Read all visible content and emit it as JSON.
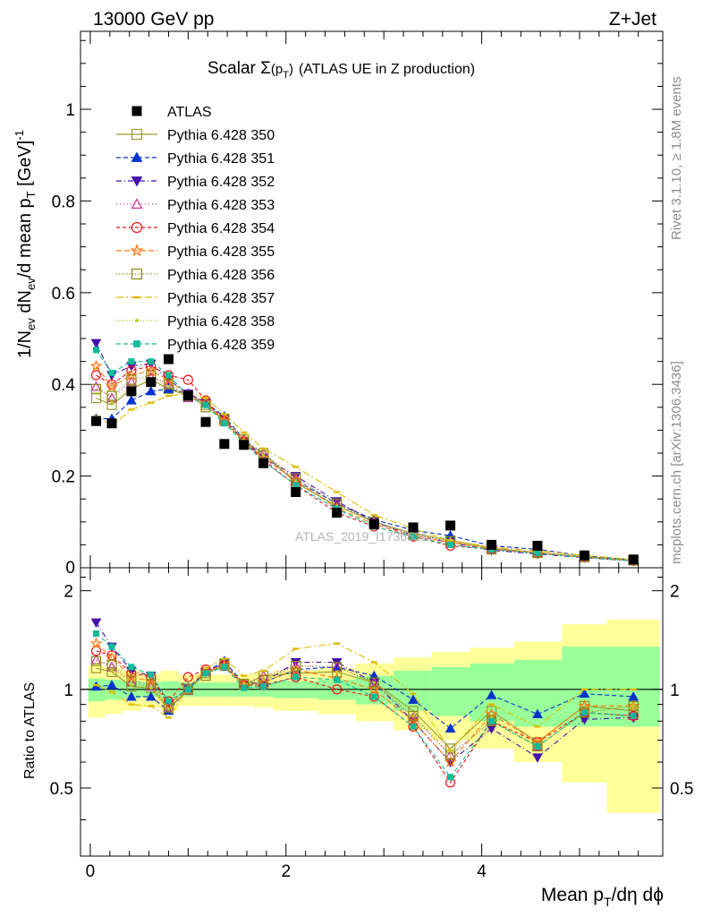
{
  "header": {
    "left": "13000 GeV pp",
    "right": "Z+Jet"
  },
  "plot_title": {
    "prefix": "Scalar ",
    "sigma": "Σ",
    "paren_open": "(",
    "p": "p",
    "sub": "T",
    "paren_close": ")",
    "suffix": "(ATLAS UE in Z production)"
  },
  "side_text": {
    "rivet": "Rivet 3.1.10, ≥ 1.8M events",
    "mcplots": "mcplots.cern.ch [arXiv:1306.3436]"
  },
  "watermark": "ATLAS_2019_I1736531",
  "ylabel_top": {
    "a": "1/N",
    "a_sub": "ev",
    "b": " dN",
    "b_sub": "ev",
    "c": "/d mean p",
    "c_sub": "T",
    "d": " [GeV]",
    "d_sup": "-1"
  },
  "ylabel_bottom": "Ratio to ATLAS",
  "xlabel": {
    "a": "Mean p",
    "a_sub": "T",
    "b": "/dη dϕ"
  },
  "colors": {
    "data": "#000000",
    "band_inner": "#99ff99",
    "band_outer": "#ffff99"
  },
  "chart_data": {
    "type": "scatter",
    "x": [
      0.06,
      0.22,
      0.42,
      0.62,
      0.8,
      1.0,
      1.18,
      1.37,
      1.57,
      1.77,
      2.1,
      2.52,
      2.9,
      3.3,
      3.68,
      4.1,
      4.57,
      5.05,
      5.55
    ],
    "xlim": [
      -0.1,
      5.85
    ],
    "xticks": [
      "0",
      "2",
      "4"
    ],
    "upper": {
      "ylim": [
        0,
        1.17
      ],
      "yticks": [
        "0.2",
        "0.4",
        "0.6",
        "0.8",
        "1"
      ],
      "ytick_bottom": "0",
      "data": {
        "name": "ATLAS",
        "y": [
          0.32,
          0.315,
          0.385,
          0.405,
          0.455,
          0.375,
          0.318,
          0.27,
          0.268,
          0.228,
          0.165,
          0.12,
          0.095,
          0.088,
          0.092,
          0.05,
          0.048,
          0.027,
          0.018
        ]
      },
      "series": [
        {
          "name": "Pythia 6.428 350",
          "color": "#999933",
          "marker": "square-open",
          "dash": "",
          "y": [
            0.37,
            0.355,
            0.39,
            0.41,
            0.39,
            0.375,
            0.355,
            0.32,
            0.275,
            0.25,
            0.185,
            0.135,
            0.1,
            0.075,
            0.06,
            0.043,
            0.033,
            0.024,
            0.016
          ]
        },
        {
          "name": "Pythia 6.428 351",
          "color": "#0033cc",
          "marker": "triangle-up",
          "dash": "5,3",
          "y": [
            0.325,
            0.325,
            0.365,
            0.385,
            0.39,
            0.38,
            0.36,
            0.33,
            0.28,
            0.24,
            0.19,
            0.14,
            0.105,
            0.082,
            0.07,
            0.048,
            0.04,
            0.026,
            0.017
          ]
        },
        {
          "name": "Pythia 6.428 352",
          "color": "#4411aa",
          "marker": "triangle-down",
          "dash": "6,3,1,3",
          "y": [
            0.49,
            0.42,
            0.44,
            0.445,
            0.41,
            0.38,
            0.36,
            0.325,
            0.275,
            0.24,
            0.2,
            0.145,
            0.1,
            0.07,
            0.055,
            0.038,
            0.03,
            0.022,
            0.015
          ]
        },
        {
          "name": "Pythia 6.428 353",
          "color": "#cc3399",
          "marker": "triangle-open",
          "dash": "1,3",
          "y": [
            0.395,
            0.37,
            0.405,
            0.415,
            0.4,
            0.37,
            0.36,
            0.325,
            0.28,
            0.25,
            0.195,
            0.14,
            0.1,
            0.072,
            0.058,
            0.04,
            0.032,
            0.023,
            0.015
          ]
        },
        {
          "name": "Pythia 6.428 354",
          "color": "#ee1111",
          "marker": "circle-open",
          "dash": "4,3",
          "y": [
            0.42,
            0.4,
            0.43,
            0.44,
            0.42,
            0.41,
            0.365,
            0.32,
            0.275,
            0.235,
            0.18,
            0.12,
            0.09,
            0.068,
            0.048,
            0.04,
            0.033,
            0.023,
            0.015
          ]
        },
        {
          "name": "Pythia 6.428 355",
          "color": "#ff7711",
          "marker": "star-open",
          "dash": "6,3",
          "y": [
            0.44,
            0.395,
            0.42,
            0.43,
            0.41,
            0.375,
            0.36,
            0.32,
            0.275,
            0.24,
            0.19,
            0.13,
            0.095,
            0.07,
            0.055,
            0.042,
            0.033,
            0.024,
            0.016
          ]
        },
        {
          "name": "Pythia 6.428 356",
          "color": "#888811",
          "marker": "square-open",
          "dash": "1,2",
          "y": [
            0.39,
            0.375,
            0.41,
            0.42,
            0.4,
            0.375,
            0.35,
            0.325,
            0.28,
            0.245,
            0.195,
            0.14,
            0.1,
            0.073,
            0.058,
            0.04,
            0.032,
            0.023,
            0.016
          ]
        },
        {
          "name": "Pythia 6.428 357",
          "color": "#ddbb00",
          "marker": "dash",
          "dash": "8,3,2,3",
          "y": [
            0.33,
            0.31,
            0.345,
            0.36,
            0.375,
            0.38,
            0.37,
            0.335,
            0.295,
            0.26,
            0.22,
            0.165,
            0.115,
            0.085,
            0.06,
            0.045,
            0.037,
            0.027,
            0.018
          ]
        },
        {
          "name": "Pythia 6.428 358",
          "color": "#bbcc22",
          "marker": "dot",
          "dash": "1,2",
          "y": [
            0.38,
            0.36,
            0.395,
            0.41,
            0.395,
            0.375,
            0.355,
            0.32,
            0.278,
            0.245,
            0.19,
            0.135,
            0.1,
            0.073,
            0.06,
            0.041,
            0.032,
            0.023,
            0.016
          ]
        },
        {
          "name": "Pythia 6.428 359",
          "color": "#11bb99",
          "marker": "square-filled",
          "dash": "5,3",
          "y": [
            0.475,
            0.425,
            0.45,
            0.45,
            0.42,
            0.375,
            0.355,
            0.315,
            0.272,
            0.232,
            0.18,
            0.128,
            0.09,
            0.068,
            0.05,
            0.04,
            0.032,
            0.023,
            0.015
          ]
        }
      ]
    },
    "ratio": {
      "ylim": [
        0.31,
        2.35
      ],
      "yticks": [
        "0.5",
        "1",
        "2"
      ],
      "band_x": [
        -0.02,
        0.15,
        0.32,
        0.52,
        0.72,
        0.9,
        1.1,
        1.28,
        1.47,
        1.67,
        1.87,
        2.33,
        2.71,
        3.1,
        3.49,
        3.88,
        4.33,
        4.82,
        5.28,
        5.82
      ],
      "band_inner": [
        [
          0.92,
          1.08
        ],
        [
          0.93,
          1.07
        ],
        [
          0.94,
          1.06
        ],
        [
          0.95,
          1.05
        ],
        [
          0.94,
          1.06
        ],
        [
          0.95,
          1.05
        ],
        [
          0.95,
          1.05
        ],
        [
          0.95,
          1.05
        ],
        [
          0.95,
          1.05
        ],
        [
          0.95,
          1.05
        ],
        [
          0.94,
          1.06
        ],
        [
          0.93,
          1.07
        ],
        [
          0.9,
          1.1
        ],
        [
          0.86,
          1.14
        ],
        [
          0.83,
          1.17
        ],
        [
          0.8,
          1.2
        ],
        [
          0.77,
          1.23
        ],
        [
          0.77,
          1.35
        ],
        [
          0.77,
          1.35
        ]
      ],
      "band_outer": [
        [
          0.82,
          1.18
        ],
        [
          0.84,
          1.16
        ],
        [
          0.86,
          1.14
        ],
        [
          0.88,
          1.12
        ],
        [
          0.86,
          1.14
        ],
        [
          0.89,
          1.11
        ],
        [
          0.89,
          1.11
        ],
        [
          0.89,
          1.11
        ],
        [
          0.89,
          1.11
        ],
        [
          0.88,
          1.12
        ],
        [
          0.86,
          1.14
        ],
        [
          0.84,
          1.16
        ],
        [
          0.8,
          1.2
        ],
        [
          0.75,
          1.25
        ],
        [
          0.7,
          1.3
        ],
        [
          0.66,
          1.34
        ],
        [
          0.6,
          1.4
        ],
        [
          0.52,
          1.58
        ],
        [
          0.42,
          1.63
        ]
      ],
      "series": [
        [
          1.16,
          1.13,
          1.02,
          1.01,
          0.87,
          1.0,
          1.12,
          1.18,
          1.03,
          1.1,
          1.12,
          1.13,
          1.05,
          0.86,
          0.66,
          0.86,
          0.69,
          0.89,
          0.86
        ],
        [
          1.02,
          1.03,
          0.95,
          0.95,
          0.86,
          1.01,
          1.13,
          1.22,
          1.04,
          1.05,
          1.15,
          1.17,
          1.1,
          0.93,
          0.76,
          0.96,
          0.84,
          0.97,
          0.95
        ],
        [
          1.6,
          1.35,
          1.14,
          1.1,
          0.9,
          1.01,
          1.13,
          1.2,
          1.03,
          1.05,
          1.21,
          1.21,
          1.05,
          0.8,
          0.6,
          0.76,
          0.62,
          0.81,
          0.82
        ],
        [
          1.23,
          1.17,
          1.05,
          1.02,
          0.88,
          0.99,
          1.13,
          1.2,
          1.04,
          1.1,
          1.18,
          1.17,
          1.05,
          0.82,
          0.63,
          0.8,
          0.67,
          0.85,
          0.83
        ],
        [
          1.31,
          1.27,
          1.12,
          1.09,
          0.92,
          1.09,
          1.15,
          1.18,
          1.03,
          1.03,
          1.09,
          1.0,
          0.95,
          0.77,
          0.52,
          0.8,
          0.69,
          0.85,
          0.83
        ],
        [
          1.38,
          1.25,
          1.09,
          1.06,
          0.9,
          1.0,
          1.13,
          1.18,
          1.03,
          1.05,
          1.15,
          1.08,
          1.0,
          0.8,
          0.6,
          0.84,
          0.69,
          0.89,
          0.89
        ],
        [
          1.22,
          1.19,
          1.06,
          1.04,
          0.88,
          1.0,
          1.1,
          1.2,
          1.04,
          1.07,
          1.18,
          1.17,
          1.05,
          0.83,
          0.63,
          0.8,
          0.67,
          0.85,
          0.89
        ],
        [
          1.03,
          0.98,
          0.9,
          0.89,
          0.82,
          1.01,
          1.16,
          1.24,
          1.1,
          1.14,
          1.33,
          1.38,
          1.21,
          0.97,
          0.65,
          0.9,
          0.77,
          1.0,
          1.0
        ],
        [
          1.19,
          1.14,
          1.03,
          1.01,
          0.87,
          1.0,
          1.12,
          1.19,
          1.04,
          1.07,
          1.15,
          1.13,
          1.05,
          0.83,
          0.65,
          0.82,
          0.67,
          0.85,
          0.89
        ],
        [
          1.48,
          1.35,
          1.17,
          1.11,
          0.92,
          1.0,
          1.12,
          1.17,
          1.01,
          1.02,
          1.09,
          1.07,
          0.95,
          0.77,
          0.54,
          0.8,
          0.67,
          0.85,
          0.83
        ]
      ]
    }
  }
}
